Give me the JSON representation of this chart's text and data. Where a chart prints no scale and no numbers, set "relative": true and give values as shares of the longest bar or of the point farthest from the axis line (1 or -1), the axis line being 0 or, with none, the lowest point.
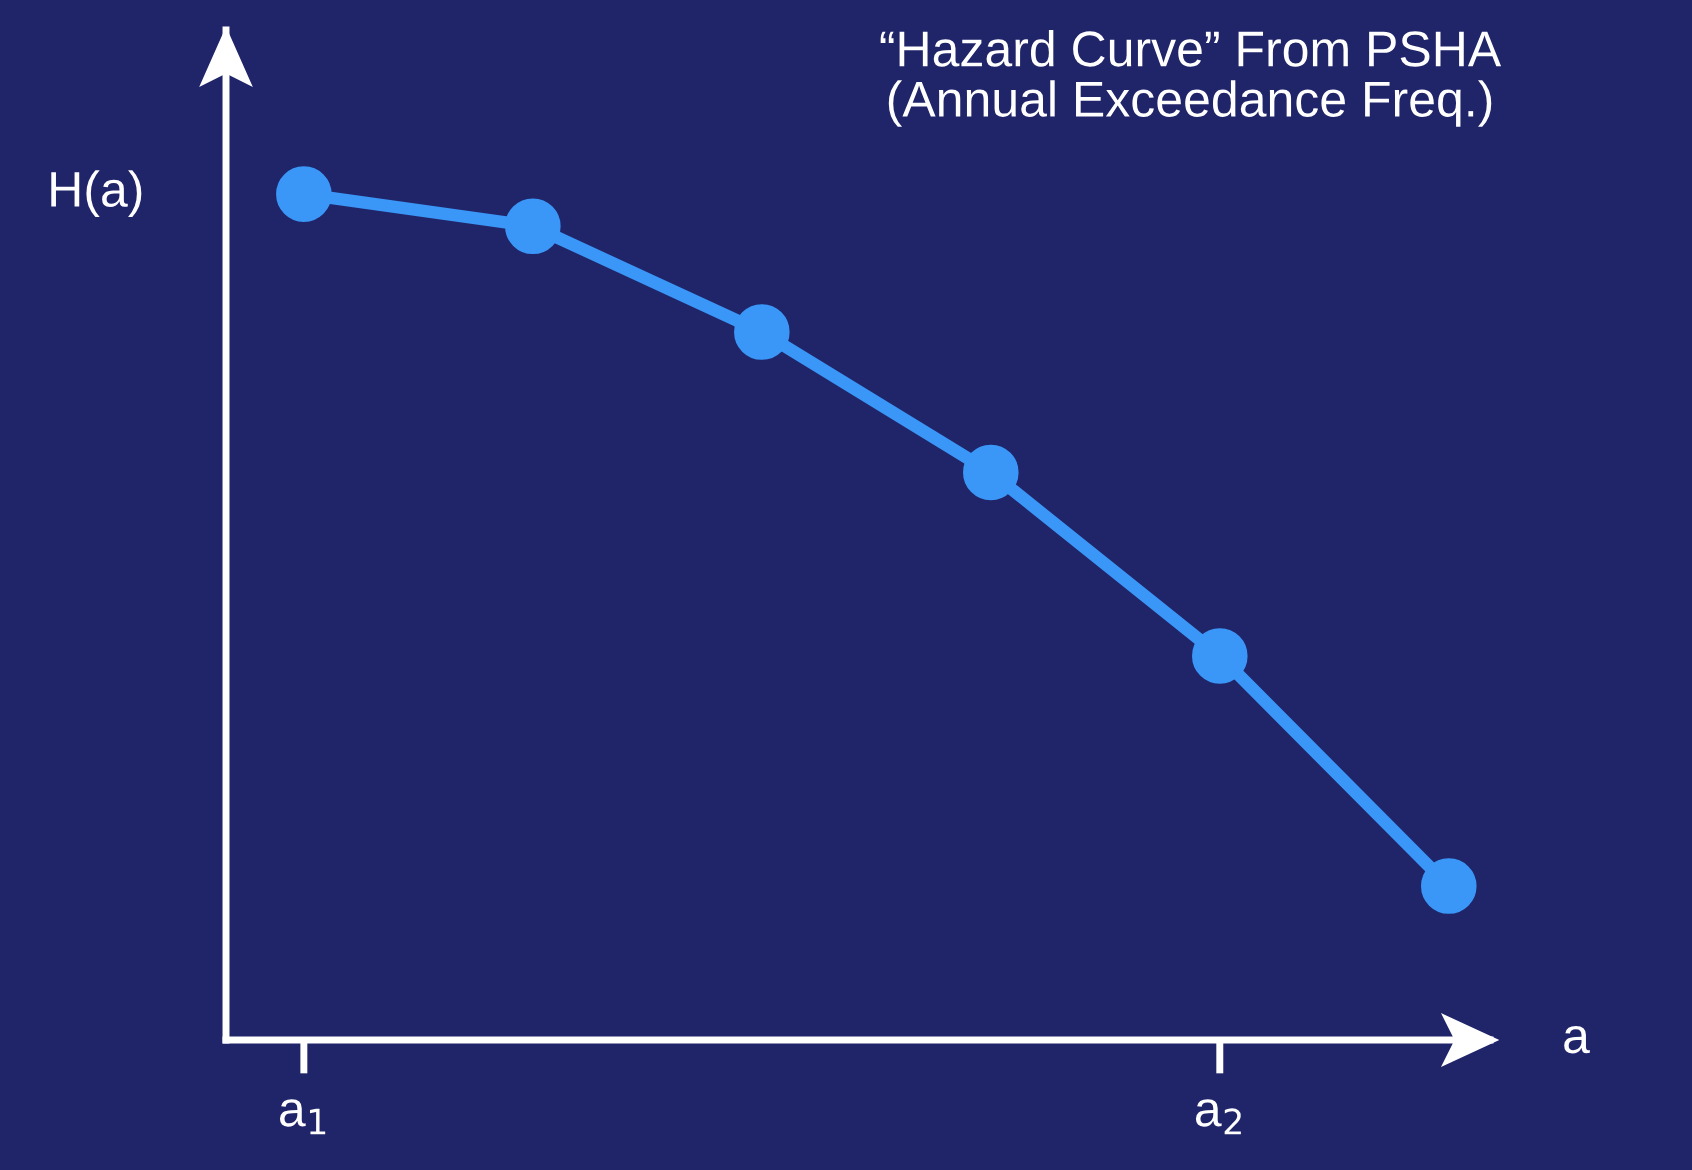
{
  "chart_data": {
    "type": "line",
    "title": "“Hazard Curve” From PSHA\n(Annual Exceedance Freq.)",
    "xlabel": "a",
    "ylabel": "H(a)",
    "relative": true,
    "categories": [
      "a$_{1}$",
      null,
      null,
      null,
      "a$_{2}$",
      null
    ],
    "series": [
      {
        "color": "#3a97f7",
        "values": [
          1,
          0.962,
          0.837,
          0.671,
          0.454,
          0.182
        ]
      }
    ],
    "marker": "circle",
    "line_style": "solid",
    "grid": false
  }
}
